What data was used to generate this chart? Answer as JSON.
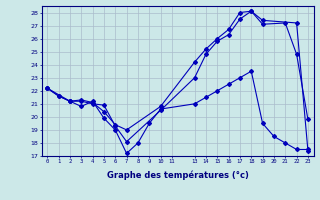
{
  "xlabel": "Graphe des températures (°c)",
  "background_color": "#cce8e8",
  "grid_color": "#aabccc",
  "line_color": "#0000bb",
  "ylim": [
    17,
    28.5
  ],
  "ytick_vals": [
    17,
    18,
    19,
    20,
    21,
    22,
    23,
    24,
    25,
    26,
    27,
    28
  ],
  "xlim": [
    -0.5,
    23.5
  ],
  "xtick_positions": [
    0,
    1,
    2,
    3,
    4,
    5,
    6,
    7,
    8,
    9,
    10,
    11,
    13,
    14,
    15,
    16,
    17,
    18,
    19,
    20,
    21,
    22,
    23
  ],
  "xtick_labels": [
    "0",
    "1",
    "2",
    "3",
    "4",
    "5",
    "6",
    "7",
    "8",
    "9",
    "10",
    "11",
    "13",
    "14",
    "15",
    "16",
    "17",
    "18",
    "19",
    "20",
    "21",
    "22",
    "23"
  ],
  "series1_x": [
    0,
    1,
    2,
    3,
    4,
    5,
    6,
    7,
    10,
    13,
    14,
    15,
    16,
    17,
    18,
    19,
    21,
    22,
    23
  ],
  "series1_y": [
    22.2,
    21.6,
    21.2,
    21.2,
    21.0,
    20.9,
    19.3,
    18.1,
    20.5,
    23.0,
    24.8,
    25.8,
    26.3,
    27.5,
    28.1,
    27.1,
    27.2,
    24.8,
    19.8
  ],
  "series2_x": [
    0,
    1,
    2,
    3,
    4,
    5,
    6,
    7,
    8,
    9,
    10,
    13,
    14,
    15,
    16,
    17,
    18,
    19,
    20,
    21,
    22,
    23
  ],
  "series2_y": [
    22.2,
    21.6,
    21.2,
    20.8,
    21.2,
    19.9,
    19.0,
    17.2,
    18.0,
    19.5,
    20.6,
    21.0,
    21.5,
    22.0,
    22.5,
    23.0,
    23.5,
    19.5,
    18.5,
    18.0,
    17.5,
    17.5
  ],
  "series3_x": [
    0,
    2,
    3,
    4,
    5,
    6,
    7,
    10,
    13,
    14,
    15,
    16,
    17,
    18,
    19,
    22,
    23
  ],
  "series3_y": [
    22.2,
    21.2,
    21.3,
    21.1,
    20.4,
    19.4,
    19.0,
    20.8,
    24.2,
    25.2,
    26.0,
    26.7,
    28.0,
    28.1,
    27.4,
    27.2,
    17.4
  ]
}
